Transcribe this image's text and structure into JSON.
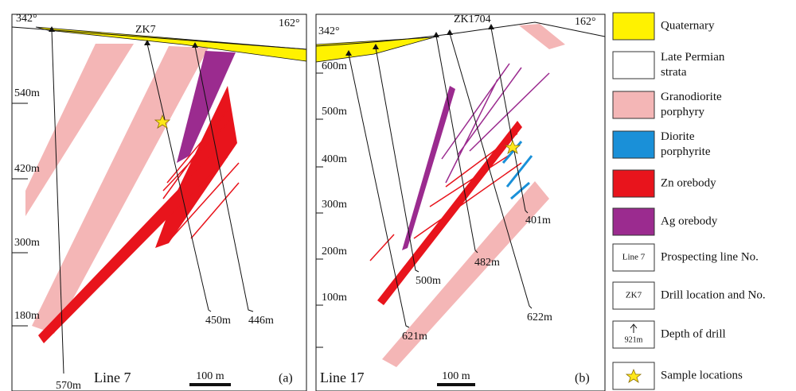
{
  "panel_a": {
    "orientation_left": "342°",
    "orientation_right": "162°",
    "drill": "ZK7",
    "elevations": [
      "540m",
      "420m",
      "300m",
      "180m"
    ],
    "depths": [
      "570m",
      "450m",
      "446m"
    ],
    "line": "Line 7",
    "scale": "100 m",
    "tag": "(a)"
  },
  "panel_b": {
    "orientation_left": "342°",
    "orientation_right": "162°",
    "drill": "ZK1704",
    "elevations": [
      "600m",
      "500m",
      "400m",
      "300m",
      "200m",
      "100m"
    ],
    "depths": [
      "621m",
      "500m",
      "482m",
      "622m",
      "401m"
    ],
    "line": "Line 17",
    "scale": "100 m",
    "tag": "(b)"
  },
  "legend": [
    {
      "lines": [
        "Quaternary"
      ]
    },
    {
      "lines": [
        "Late Permian",
        "strata"
      ]
    },
    {
      "lines": [
        "Granodiorite",
        "porphyry"
      ]
    },
    {
      "lines": [
        "Diorite",
        "porphyrite"
      ]
    },
    {
      "lines": [
        "Zn orebody"
      ]
    },
    {
      "lines": [
        "Ag orebody"
      ]
    },
    {
      "lines": [
        "Prospecting line No."
      ],
      "icon": "Line 7"
    },
    {
      "lines": [
        "Drill location and No."
      ],
      "icon": "ZK7"
    },
    {
      "lines": [
        "Depth of drill"
      ],
      "icon": "921m"
    },
    {
      "lines": [
        "Sample locations"
      ]
    }
  ]
}
